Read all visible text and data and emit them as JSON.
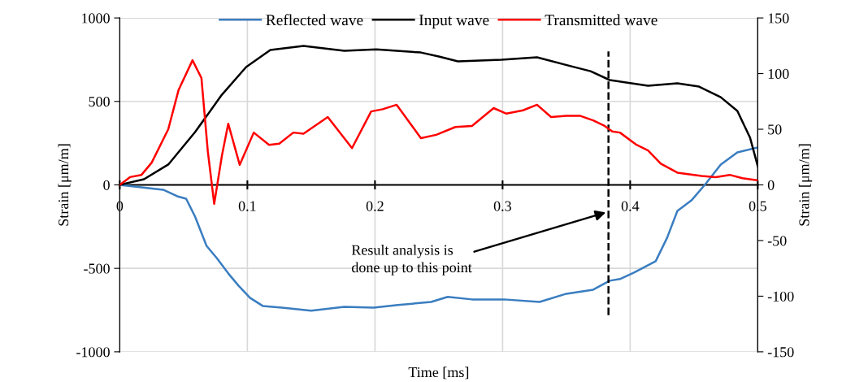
{
  "chart_data": {
    "type": "line",
    "xlabel": "Time [ms]",
    "ylabel": "Strain [μm/m]",
    "y2label": "Strain [μm/m]",
    "xlim": [
      0,
      0.5
    ],
    "xticks": [
      0,
      0.1,
      0.2,
      0.3,
      0.4,
      0.5
    ],
    "ylim": [
      -1000,
      1000
    ],
    "yticks": [
      {
        "value": -1000,
        "label": "-1000"
      },
      {
        "value": -500,
        "label": "-500"
      },
      0,
      500,
      1000
    ],
    "y2lim": [
      -150,
      150
    ],
    "y2ticks": [
      {
        "value": -150,
        "label": "-150"
      },
      {
        "value": -100,
        "label": "-100"
      },
      {
        "value": -50,
        "label": "-50"
      },
      0,
      50,
      100,
      150
    ],
    "grid": true,
    "legend": "top",
    "marker": "none",
    "line_style": "solid",
    "ref_lines": [
      {
        "axis": "x",
        "value": 0.383,
        "label": null,
        "color": "#000000",
        "line_style": "dashed"
      }
    ],
    "annotations": [
      {
        "text": "Result analysis is\ndone up to this point",
        "x": 0.381,
        "y": -165
      }
    ],
    "series": [
      {
        "name": "Reflected wave",
        "color": "#3a7dc0",
        "x": [
          0,
          0.017,
          0.034,
          0.045,
          0.052,
          0.059,
          0.068,
          0.076,
          0.085,
          0.093,
          0.102,
          0.112,
          0.127,
          0.15,
          0.176,
          0.199,
          0.218,
          0.244,
          0.257,
          0.276,
          0.301,
          0.329,
          0.35,
          0.371,
          0.384,
          0.392,
          0.403,
          0.42,
          0.429,
          0.437,
          0.448,
          0.459,
          0.471,
          0.484,
          0.5
        ],
        "values": [
          0,
          -15,
          -29,
          -68,
          -83,
          -190,
          -365,
          -438,
          -530,
          -603,
          -676,
          -725,
          -735,
          -754,
          -730,
          -735,
          -720,
          -701,
          -671,
          -686,
          -686,
          -701,
          -652,
          -628,
          -574,
          -564,
          -525,
          -457,
          -316,
          -156,
          -93,
          5,
          122,
          195,
          224
        ]
      },
      {
        "name": "Input wave",
        "color": "#000000",
        "x": [
          0,
          0.019,
          0.038,
          0.059,
          0.08,
          0.099,
          0.118,
          0.144,
          0.176,
          0.201,
          0.236,
          0.25,
          0.265,
          0.299,
          0.327,
          0.354,
          0.369,
          0.384,
          0.414,
          0.437,
          0.454,
          0.471,
          0.484,
          0.494,
          0.5
        ],
        "values": [
          0,
          34,
          122,
          316,
          540,
          706,
          808,
          832,
          803,
          812,
          793,
          769,
          740,
          750,
          764,
          710,
          681,
          628,
          594,
          608,
          589,
          525,
          443,
          282,
          112
        ]
      },
      {
        "name": "Transmitted wave",
        "color": "#ff0000",
        "axis": "y2",
        "x": [
          0,
          0.008,
          0.017,
          0.025,
          0.038,
          0.046,
          0.057,
          0.064,
          0.069,
          0.074,
          0.08,
          0.085,
          0.094,
          0.105,
          0.117,
          0.125,
          0.136,
          0.144,
          0.163,
          0.182,
          0.197,
          0.206,
          0.217,
          0.236,
          0.248,
          0.263,
          0.276,
          0.293,
          0.303,
          0.316,
          0.327,
          0.338,
          0.35,
          0.361,
          0.371,
          0.38,
          0.386,
          0.392,
          0.405,
          0.414,
          0.424,
          0.437,
          0.456,
          0.467,
          0.478,
          0.488,
          0.5
        ],
        "values": [
          0,
          7,
          9,
          20,
          50,
          85,
          112,
          96,
          30,
          -17,
          26,
          55,
          18,
          47,
          36,
          37,
          47,
          46,
          61,
          33,
          66,
          68,
          72,
          42,
          45,
          52,
          53,
          69,
          64,
          67,
          72,
          61,
          62,
          62,
          58,
          53,
          48,
          47,
          36,
          31,
          19,
          11,
          8,
          7,
          9,
          6,
          4
        ]
      }
    ]
  }
}
